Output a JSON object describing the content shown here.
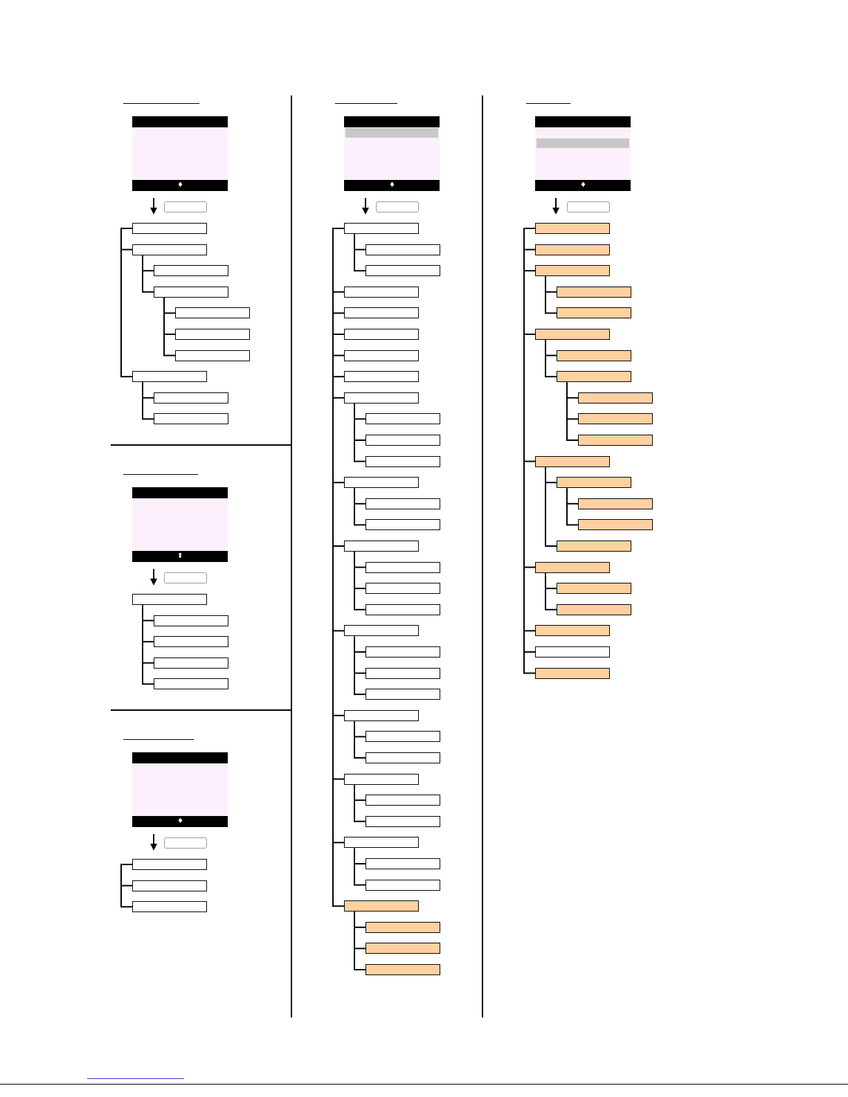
{
  "colors": {
    "screen_bg": "#fdf0fd",
    "highlight_fill": "#ffd0a0",
    "selection_bar": "#c8c8c8",
    "line": "#000000"
  },
  "icons": {
    "scroll_single": "♦",
    "scroll_updown": "⬍"
  },
  "menus": [
    {
      "name": "menu-col1-a",
      "title": "",
      "items": []
    },
    {
      "name": "menu-col1-b",
      "title": "",
      "items": []
    },
    {
      "name": "menu-col1-c",
      "title": "",
      "items": []
    },
    {
      "name": "menu-col2",
      "title": "",
      "items": []
    },
    {
      "name": "menu-col3",
      "title": "",
      "items": []
    }
  ]
}
